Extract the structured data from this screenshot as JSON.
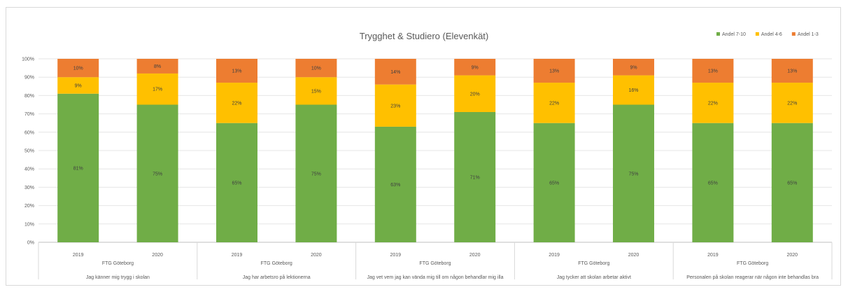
{
  "chart_data": {
    "type": "bar",
    "stacked": true,
    "title": "Trygghet & Studiero (Elevenkät)",
    "legend": {
      "position": "top-right"
    },
    "grid": true,
    "ylim": [
      0,
      100
    ],
    "yticks": [
      "0%",
      "10%",
      "20%",
      "30%",
      "40%",
      "50%",
      "60%",
      "70%",
      "80%",
      "90%",
      "100%"
    ],
    "categories": [
      "2019",
      "2020",
      "2019",
      "2020",
      "2019",
      "2020",
      "2019",
      "2020",
      "2019",
      "2020"
    ],
    "groups": [
      {
        "org": "FTG Göteborg",
        "label": "Jag känner mig trygg i skolan",
        "span": 2
      },
      {
        "org": "FTG Göteborg",
        "label": "Jag har arbetsro på lektionerna",
        "span": 2
      },
      {
        "org": "FTG Göteborg",
        "label": "Jag vet vem jag kan vända mig till om någon behandlar mig illa",
        "span": 2
      },
      {
        "org": "FTG Göteborg",
        "label": "Jag tycker att skolan arbetar aktivt",
        "span": 2
      },
      {
        "org": "FTG Göteborg",
        "label": "Personalen på skolan reagerar när någon inte behandlas bra",
        "span": 2
      }
    ],
    "series": [
      {
        "name": "Andel 7-10",
        "color": "#70ad47",
        "values": [
          81,
          75,
          65,
          75,
          63,
          71,
          65,
          75,
          65,
          65
        ]
      },
      {
        "name": "Andel 4-6",
        "color": "#ffc000",
        "values": [
          9,
          17,
          22,
          15,
          23,
          20,
          22,
          16,
          22,
          22
        ]
      },
      {
        "name": "Andel 1-3",
        "color": "#ed7d31",
        "values": [
          10,
          8,
          13,
          10,
          14,
          9,
          13,
          9,
          13,
          13
        ]
      }
    ]
  }
}
